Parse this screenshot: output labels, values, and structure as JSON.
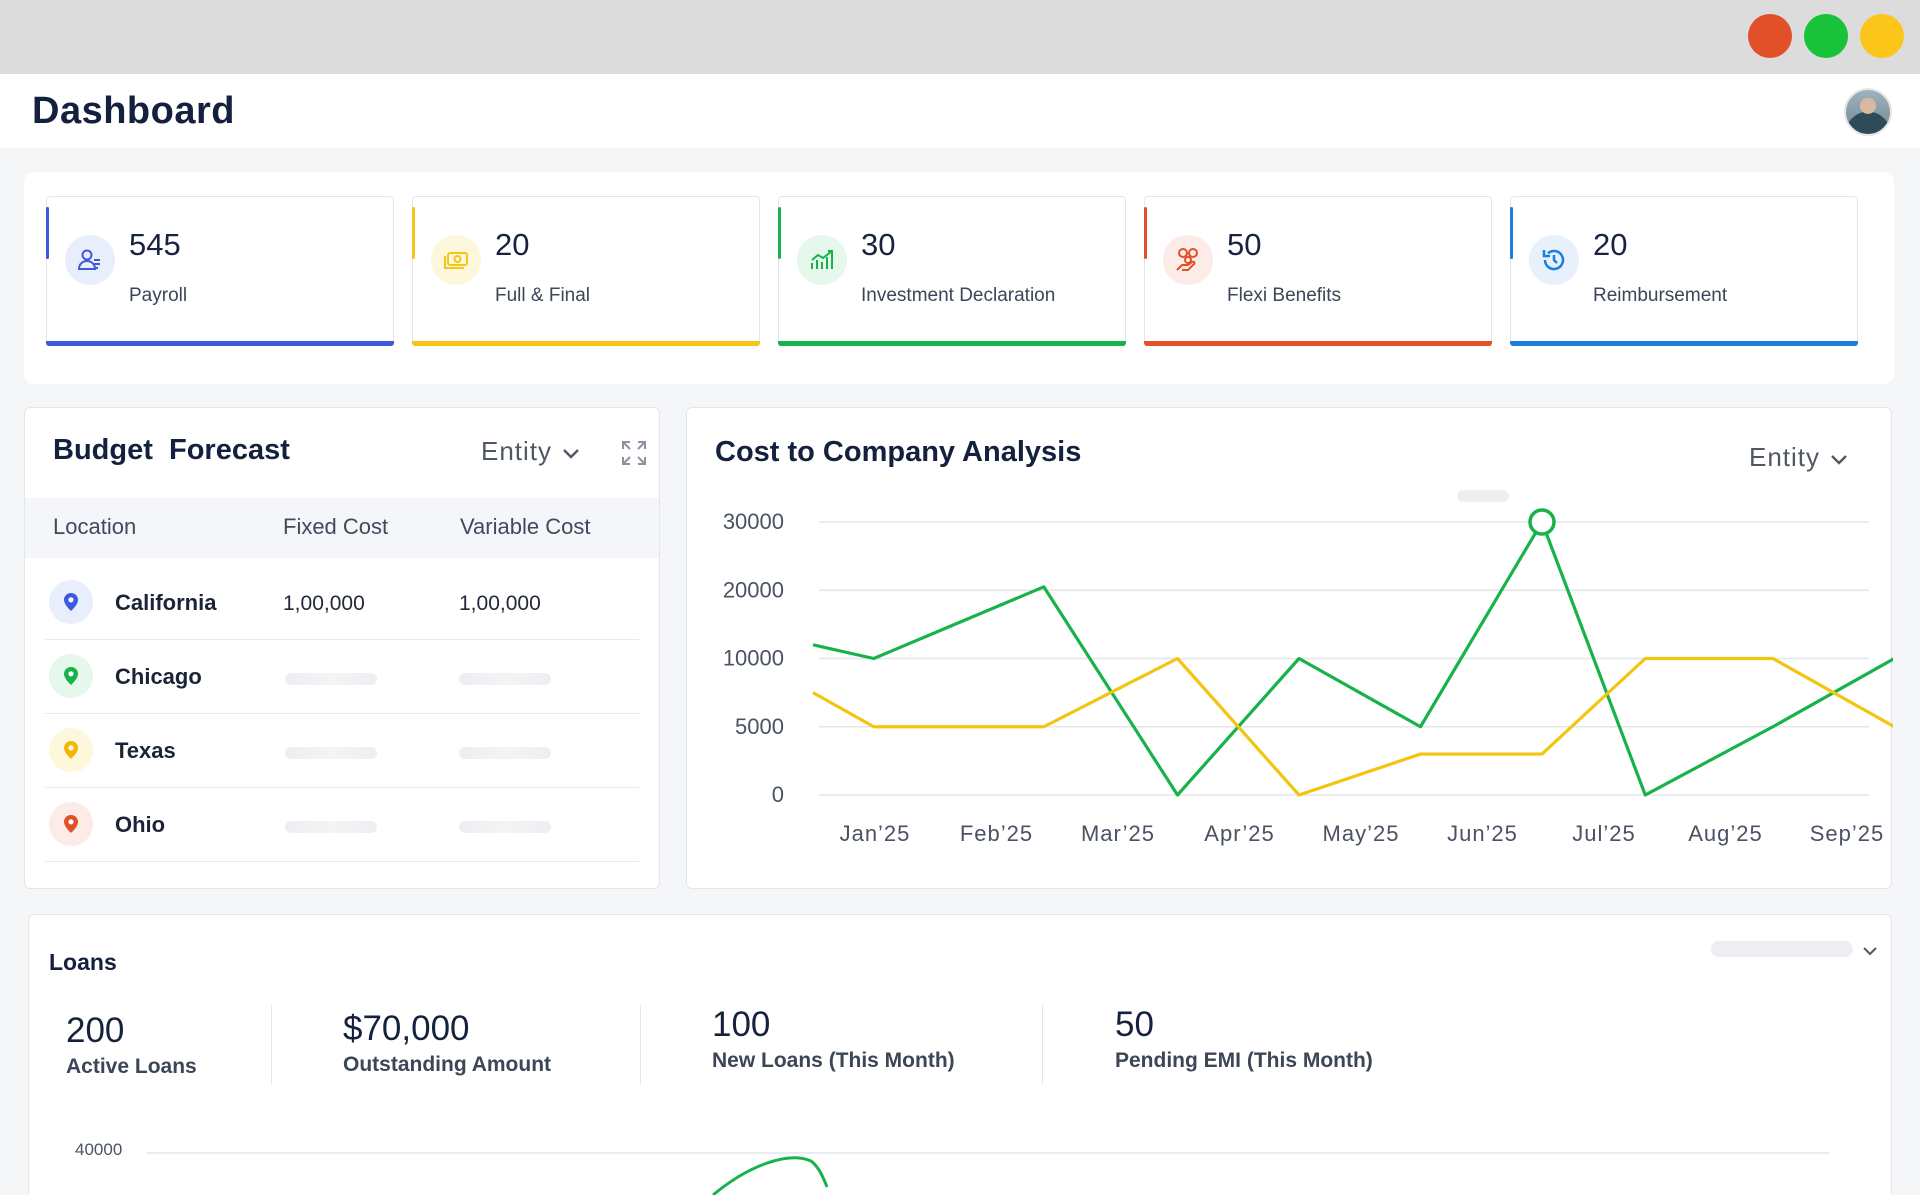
{
  "window": {
    "controls": [
      {
        "name": "close",
        "color": "#e2502a"
      },
      {
        "name": "maximize",
        "color": "#18c33a"
      },
      {
        "name": "minimize",
        "color": "#fcc51a"
      }
    ]
  },
  "header": {
    "title": "Dashboard"
  },
  "stats": [
    {
      "value": "545",
      "label": "Payroll",
      "color": "#3b5bdb",
      "icon": "payroll-users-icon",
      "icon_bg": "#e9eefc"
    },
    {
      "value": "20",
      "label": "Full & Final",
      "color": "#f5c518",
      "icon": "money-stack-icon",
      "icon_bg": "#fdf7dc"
    },
    {
      "value": "30",
      "label": "Investment Declaration",
      "color": "#17b34a",
      "icon": "chart-growth-icon",
      "icon_bg": "#e6f7ec"
    },
    {
      "value": "50",
      "label": "Flexi Benefits",
      "color": "#e2502a",
      "icon": "hand-coins-icon",
      "icon_bg": "#fcebe6"
    },
    {
      "value": "20",
      "label": "Reimbursement",
      "color": "#1a7fe0",
      "icon": "refresh-clock-icon",
      "icon_bg": "#e6f1fc"
    }
  ],
  "budget": {
    "title": "Budget  Forecast",
    "entity_label": "Entity",
    "columns": [
      "Location",
      "Fixed Cost",
      "Variable Cost"
    ],
    "rows": [
      {
        "location": "California",
        "fixed": "1,00,000",
        "variable": "1,00,000",
        "pin_color": "#3b5bdb",
        "pin_bg": "#e9eefc"
      },
      {
        "location": "Chicago",
        "fixed": null,
        "variable": null,
        "pin_color": "#17b34a",
        "pin_bg": "#e6f7ec"
      },
      {
        "location": "Texas",
        "fixed": null,
        "variable": null,
        "pin_color": "#f2b705",
        "pin_bg": "#fdf7dc"
      },
      {
        "location": "Ohio",
        "fixed": null,
        "variable": null,
        "pin_color": "#e2502a",
        "pin_bg": "#fcebe6"
      }
    ]
  },
  "ctc": {
    "title": "Cost to Company Analysis",
    "entity_label": "Entity"
  },
  "chart_data": {
    "type": "line",
    "title": "Cost to Company Analysis",
    "x": [
      "Jan’25",
      "Feb’25",
      "Mar’25",
      "Apr’25",
      "May’25",
      "Jun’25",
      "Jul’25",
      "Aug’25",
      "Sep’25"
    ],
    "y_ticks": [
      "30000",
      "20000",
      "10000",
      "5000",
      "0"
    ],
    "series": [
      {
        "color": "#17b34a",
        "points": [
          [
            0,
            12000
          ],
          [
            0.5,
            10000
          ],
          [
            1.9,
            20500
          ],
          [
            3.0,
            0
          ],
          [
            4.0,
            10000
          ],
          [
            5.0,
            5000
          ],
          [
            6.0,
            30000
          ],
          [
            6.85,
            0
          ],
          [
            7.9,
            5000
          ],
          [
            8.9,
            10000
          ]
        ]
      },
      {
        "color": "#f2c511",
        "points": [
          [
            0,
            7500
          ],
          [
            0.5,
            5000
          ],
          [
            1.9,
            5000
          ],
          [
            3.0,
            10000
          ],
          [
            4.0,
            0
          ],
          [
            5.0,
            3000
          ],
          [
            6.0,
            3000
          ],
          [
            6.85,
            10000
          ],
          [
            7.9,
            10000
          ],
          [
            8.9,
            5000
          ]
        ]
      }
    ],
    "highlight": {
      "series": 0,
      "index": 6
    }
  },
  "loans": {
    "title": "Loans",
    "stats": [
      {
        "value": "200",
        "label": "Active Loans"
      },
      {
        "value": "$70,000",
        "label": "Outstanding Amount"
      },
      {
        "value": "100",
        "label": "New Loans (This Month)"
      },
      {
        "value": "50",
        "label": "Pending EMI (This Month)"
      }
    ],
    "chart_y_top_tick": "40000"
  }
}
